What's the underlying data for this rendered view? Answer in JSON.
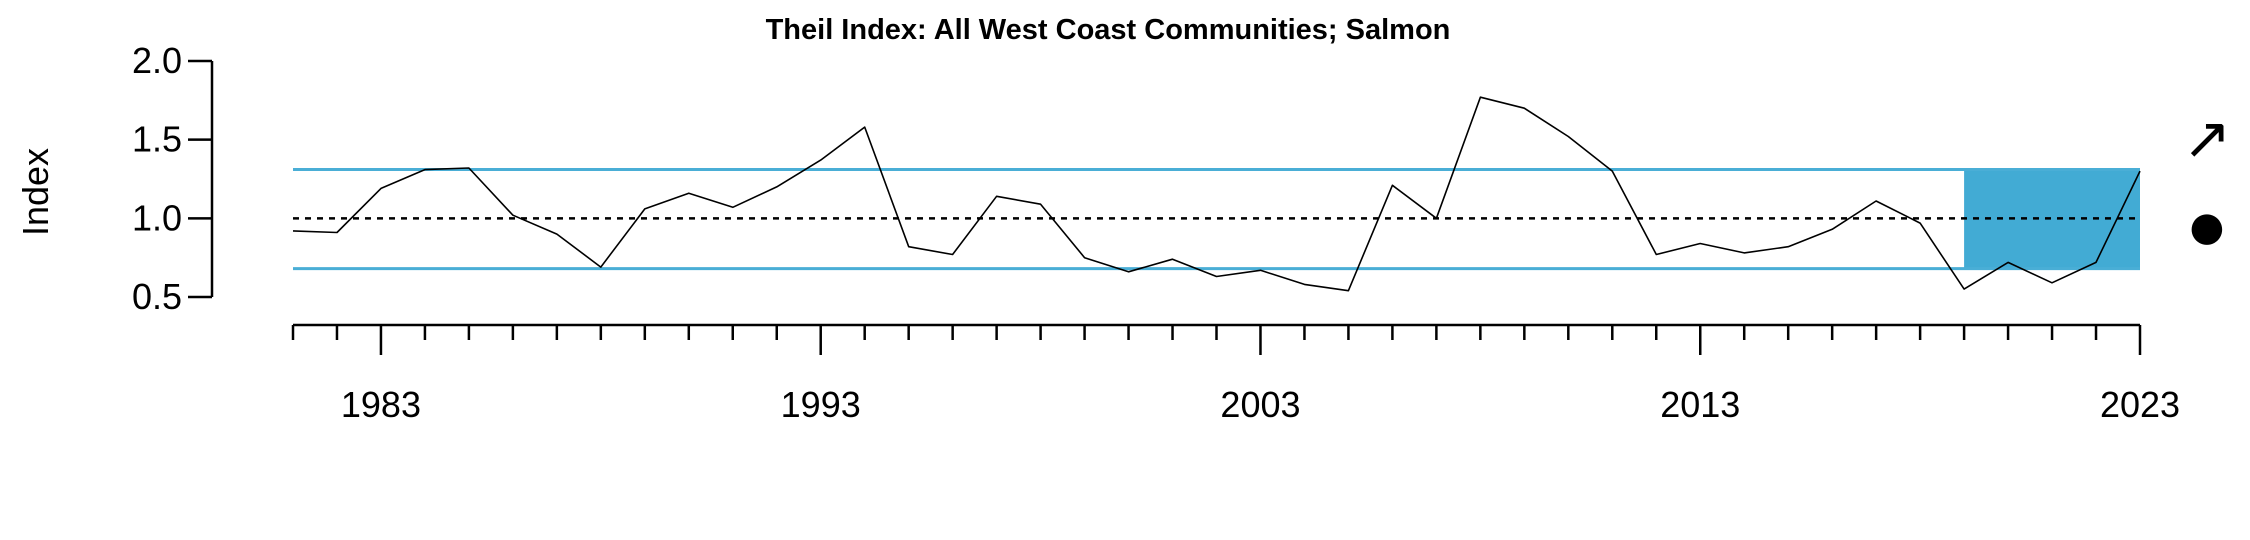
{
  "chart_data": {
    "type": "line",
    "title": "Theil Index: All West Coast Communities; Salmon",
    "xlabel": "",
    "ylabel": "Index",
    "x": [
      1981,
      1982,
      1983,
      1984,
      1985,
      1986,
      1987,
      1988,
      1989,
      1990,
      1991,
      1992,
      1993,
      1994,
      1995,
      1996,
      1997,
      1998,
      1999,
      2000,
      2001,
      2002,
      2003,
      2004,
      2005,
      2006,
      2007,
      2008,
      2009,
      2010,
      2011,
      2012,
      2013,
      2014,
      2015,
      2016,
      2017,
      2018,
      2019,
      2020,
      2021,
      2022,
      2023
    ],
    "series": [
      {
        "values": [
          0.92,
          0.91,
          1.19,
          1.31,
          1.32,
          1.02,
          0.9,
          0.69,
          1.06,
          1.16,
          1.07,
          1.2,
          1.37,
          1.58,
          0.82,
          0.77,
          1.14,
          1.09,
          0.75,
          0.66,
          0.74,
          0.63,
          0.67,
          0.58,
          0.54,
          1.21,
          1.0,
          1.77,
          1.7,
          1.52,
          1.3,
          0.77,
          0.84,
          0.78,
          0.82,
          0.93,
          1.11,
          0.97,
          0.55,
          0.72,
          0.59,
          0.72,
          1.3
        ],
        "color": "#000000"
      }
    ],
    "xticks_labeled": [
      "1983",
      "1993",
      "2003",
      "2013",
      "2023"
    ],
    "xticks_labeled_values": [
      1983,
      1993,
      2003,
      2013,
      2023
    ],
    "yticks": [
      "0.5",
      "1.0",
      "1.5",
      "2.0"
    ],
    "ytick_values": [
      0.5,
      1.0,
      1.5,
      2.0
    ],
    "xlim": [
      1981,
      2023
    ],
    "ylim": [
      0.5,
      2.0
    ],
    "mean": 1.0,
    "upper_sd": 1.31,
    "lower_sd": 0.68,
    "shaded_recent_window": [
      2019,
      2023
    ],
    "sd_line_color": "#4aaed6",
    "shade_color": "#42abd4",
    "mean_line_color": "#000000",
    "trend_symbol": "↗",
    "mean_symbol": "●",
    "grid": false,
    "legend": "none"
  }
}
